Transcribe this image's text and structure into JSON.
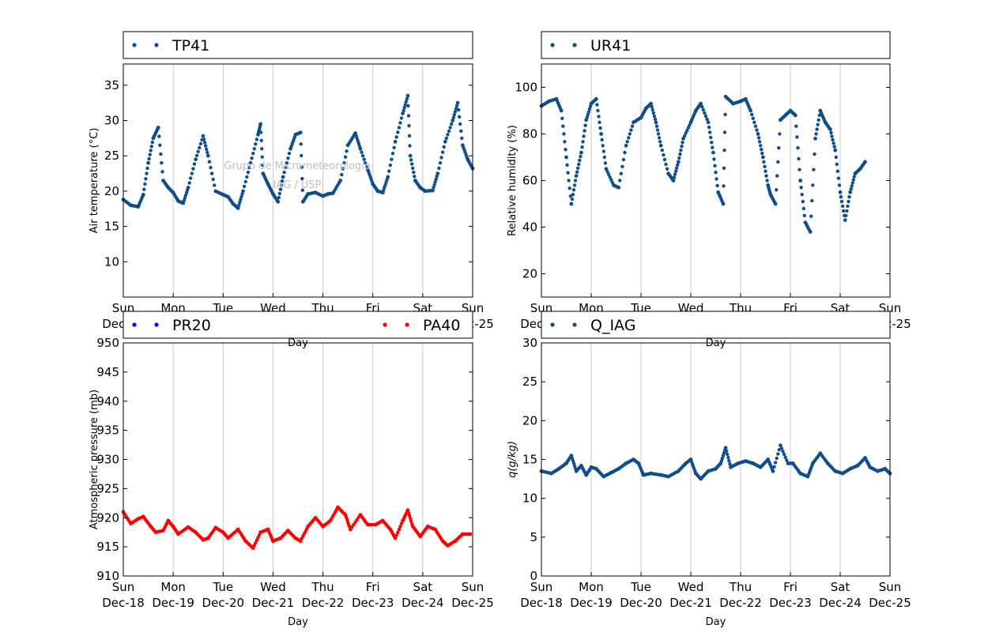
{
  "watermark": [
    "Grupo de Micrometeorologia",
    "IAG / USP"
  ],
  "x_tick_labels": [
    [
      "Sun",
      "Dec-18"
    ],
    [
      "Mon",
      "Dec-19"
    ],
    [
      "Tue",
      "Dec-20"
    ],
    [
      "Wed",
      "Dec-21"
    ],
    [
      "Thu",
      "Dec-22"
    ],
    [
      "Fri",
      "Dec-23"
    ],
    [
      "Sat",
      "Dec-24"
    ],
    [
      "Sun",
      "Dec-25"
    ]
  ],
  "chart_data": [
    {
      "id": "temperature",
      "type": "scatter",
      "xlabel": "Day",
      "ylabel": "Air temperature (°C)",
      "ylim": [
        5,
        38
      ],
      "yticks": [
        10,
        15,
        20,
        25,
        30,
        35
      ],
      "grid": "vertical",
      "legend_position": "top",
      "x_unit": "day offset from Sun Dec-18",
      "series": [
        {
          "name": "TP41",
          "color": "#104e8b",
          "points": [
            [
              0,
              18.8
            ],
            [
              0.15,
              18.0
            ],
            [
              0.3,
              17.8
            ],
            [
              0.4,
              19.5
            ],
            [
              0.5,
              24.0
            ],
            [
              0.6,
              27.5
            ],
            [
              0.7,
              29.0
            ],
            [
              0.8,
              21.5
            ],
            [
              0.9,
              20.5
            ],
            [
              1.0,
              19.8
            ],
            [
              1.1,
              18.6
            ],
            [
              1.2,
              18.3
            ],
            [
              1.3,
              20.5
            ],
            [
              1.45,
              24.5
            ],
            [
              1.6,
              27.8
            ],
            [
              1.7,
              25.0
            ],
            [
              1.85,
              20.0
            ],
            [
              2.0,
              19.5
            ],
            [
              2.1,
              19.2
            ],
            [
              2.2,
              18.2
            ],
            [
              2.3,
              17.6
            ],
            [
              2.4,
              20.0
            ],
            [
              2.55,
              24.0
            ],
            [
              2.7,
              28.0
            ],
            [
              2.75,
              29.5
            ],
            [
              2.8,
              22.5
            ],
            [
              2.9,
              21.0
            ],
            [
              3.0,
              19.6
            ],
            [
              3.1,
              18.5
            ],
            [
              3.2,
              22.0
            ],
            [
              3.35,
              26.0
            ],
            [
              3.45,
              28.0
            ],
            [
              3.55,
              28.3
            ],
            [
              3.6,
              18.5
            ],
            [
              3.7,
              19.6
            ],
            [
              3.85,
              19.8
            ],
            [
              4.0,
              19.3
            ],
            [
              4.1,
              19.6
            ],
            [
              4.2,
              19.7
            ],
            [
              4.35,
              21.5
            ],
            [
              4.5,
              26.5
            ],
            [
              4.65,
              28.2
            ],
            [
              4.75,
              26.0
            ],
            [
              4.9,
              23.0
            ],
            [
              5.0,
              21.0
            ],
            [
              5.1,
              20.0
            ],
            [
              5.2,
              19.8
            ],
            [
              5.3,
              22.0
            ],
            [
              5.45,
              27.0
            ],
            [
              5.6,
              31.0
            ],
            [
              5.7,
              33.5
            ],
            [
              5.75,
              25.0
            ],
            [
              5.85,
              21.5
            ],
            [
              5.95,
              20.5
            ],
            [
              6.05,
              20.0
            ],
            [
              6.2,
              20.1
            ],
            [
              6.3,
              22.5
            ],
            [
              6.45,
              27.0
            ],
            [
              6.6,
              30.0
            ],
            [
              6.7,
              32.5
            ],
            [
              6.8,
              26.5
            ],
            [
              6.9,
              24.5
            ],
            [
              7.0,
              23.2
            ]
          ]
        }
      ]
    },
    {
      "id": "humidity",
      "type": "scatter",
      "xlabel": "Day",
      "ylabel": "Relative humidity (%)",
      "ylim": [
        10,
        110
      ],
      "yticks": [
        20,
        40,
        60,
        80,
        100
      ],
      "grid": "vertical",
      "legend_position": "top",
      "x_unit": "day offset from Sun Dec-18",
      "series": [
        {
          "name": "UR41",
          "color": "#104e8b",
          "points": [
            [
              0,
              92
            ],
            [
              0.15,
              94
            ],
            [
              0.3,
              95
            ],
            [
              0.4,
              90
            ],
            [
              0.5,
              70
            ],
            [
              0.6,
              50
            ],
            [
              0.7,
              62
            ],
            [
              0.8,
              72
            ],
            [
              0.9,
              86
            ],
            [
              1.0,
              93
            ],
            [
              1.1,
              95
            ],
            [
              1.2,
              80
            ],
            [
              1.3,
              65
            ],
            [
              1.45,
              58
            ],
            [
              1.55,
              57
            ],
            [
              1.7,
              75
            ],
            [
              1.85,
              85
            ],
            [
              2.0,
              87
            ],
            [
              2.1,
              91
            ],
            [
              2.2,
              93
            ],
            [
              2.3,
              85
            ],
            [
              2.4,
              75
            ],
            [
              2.55,
              63
            ],
            [
              2.65,
              60
            ],
            [
              2.75,
              68
            ],
            [
              2.85,
              78
            ],
            [
              3.0,
              85
            ],
            [
              3.1,
              90
            ],
            [
              3.2,
              93
            ],
            [
              3.35,
              85
            ],
            [
              3.45,
              72
            ],
            [
              3.55,
              55
            ],
            [
              3.65,
              50
            ],
            [
              3.7,
              96
            ],
            [
              3.85,
              93
            ],
            [
              4.0,
              94
            ],
            [
              4.1,
              95
            ],
            [
              4.2,
              90
            ],
            [
              4.35,
              80
            ],
            [
              4.45,
              70
            ],
            [
              4.55,
              58
            ],
            [
              4.6,
              54
            ],
            [
              4.7,
              50
            ],
            [
              4.8,
              86
            ],
            [
              4.9,
              88
            ],
            [
              5.0,
              90
            ],
            [
              5.1,
              88
            ],
            [
              5.2,
              60
            ],
            [
              5.3,
              42
            ],
            [
              5.4,
              38
            ],
            [
              5.5,
              78
            ],
            [
              5.6,
              90
            ],
            [
              5.7,
              85
            ],
            [
              5.8,
              82
            ],
            [
              5.9,
              73
            ],
            [
              6.0,
              55
            ],
            [
              6.1,
              43
            ],
            [
              6.2,
              55
            ],
            [
              6.3,
              63
            ],
            [
              6.4,
              65
            ],
            [
              6.5,
              68
            ]
          ]
        }
      ]
    },
    {
      "id": "pressure",
      "type": "scatter",
      "xlabel": "Day",
      "ylabel": "Atmospheric pressure (mb)",
      "ylim": [
        910,
        950
      ],
      "yticks": [
        910,
        915,
        920,
        925,
        930,
        935,
        940,
        945,
        950
      ],
      "grid": "vertical",
      "legend_position": "top",
      "x_unit": "day offset from Sun Dec-18",
      "series": [
        {
          "name": "PR20",
          "color": "#0000ff",
          "points": []
        },
        {
          "name": "PA40",
          "color": "#ff0000",
          "points": [
            [
              0,
              921
            ],
            [
              0.15,
              919
            ],
            [
              0.3,
              919.8
            ],
            [
              0.4,
              920.2
            ],
            [
              0.55,
              918.5
            ],
            [
              0.65,
              917.5
            ],
            [
              0.8,
              917.8
            ],
            [
              0.9,
              919.5
            ],
            [
              1.0,
              918.5
            ],
            [
              1.1,
              917.2
            ],
            [
              1.3,
              918.4
            ],
            [
              1.45,
              917.5
            ],
            [
              1.6,
              916.2
            ],
            [
              1.7,
              916.5
            ],
            [
              1.85,
              918.3
            ],
            [
              2.0,
              917.5
            ],
            [
              2.1,
              916.5
            ],
            [
              2.3,
              918.0
            ],
            [
              2.45,
              916.0
            ],
            [
              2.6,
              914.8
            ],
            [
              2.75,
              917.5
            ],
            [
              2.9,
              918.0
            ],
            [
              3.0,
              916.0
            ],
            [
              3.15,
              916.5
            ],
            [
              3.3,
              917.8
            ],
            [
              3.45,
              916.5
            ],
            [
              3.55,
              916.0
            ],
            [
              3.7,
              918.5
            ],
            [
              3.85,
              920.0
            ],
            [
              4.0,
              918.5
            ],
            [
              4.15,
              919.5
            ],
            [
              4.3,
              921.8
            ],
            [
              4.45,
              920.5
            ],
            [
              4.55,
              918.0
            ],
            [
              4.75,
              920.5
            ],
            [
              4.9,
              918.8
            ],
            [
              5.05,
              918.8
            ],
            [
              5.2,
              919.5
            ],
            [
              5.35,
              918.0
            ],
            [
              5.45,
              916.5
            ],
            [
              5.6,
              919.5
            ],
            [
              5.7,
              921.3
            ],
            [
              5.8,
              918.5
            ],
            [
              5.95,
              916.8
            ],
            [
              6.1,
              918.5
            ],
            [
              6.25,
              918.0
            ],
            [
              6.4,
              916.0
            ],
            [
              6.5,
              915.2
            ],
            [
              6.65,
              916.0
            ],
            [
              6.8,
              917.2
            ],
            [
              6.95,
              917.2
            ]
          ]
        }
      ]
    },
    {
      "id": "specific_humidity",
      "type": "scatter",
      "xlabel": "Day",
      "ylabel": "q(g/kg)",
      "ylim": [
        0,
        30
      ],
      "yticks": [
        0,
        5,
        10,
        15,
        20,
        25,
        30
      ],
      "grid": "vertical",
      "legend_position": "top",
      "x_unit": "day offset from Sun Dec-18",
      "series": [
        {
          "name": "Q_IAG",
          "color": "#104e8b",
          "points": [
            [
              0,
              13.5
            ],
            [
              0.2,
              13.2
            ],
            [
              0.35,
              13.8
            ],
            [
              0.5,
              14.5
            ],
            [
              0.6,
              15.5
            ],
            [
              0.7,
              13.5
            ],
            [
              0.8,
              14.2
            ],
            [
              0.9,
              13.0
            ],
            [
              1.0,
              14.0
            ],
            [
              1.1,
              13.8
            ],
            [
              1.25,
              12.8
            ],
            [
              1.4,
              13.3
            ],
            [
              1.55,
              13.8
            ],
            [
              1.7,
              14.5
            ],
            [
              1.85,
              15.0
            ],
            [
              1.95,
              14.5
            ],
            [
              2.05,
              13.0
            ],
            [
              2.2,
              13.2
            ],
            [
              2.4,
              13.0
            ],
            [
              2.55,
              12.8
            ],
            [
              2.75,
              13.5
            ],
            [
              2.9,
              14.5
            ],
            [
              3.0,
              15.0
            ],
            [
              3.1,
              13.2
            ],
            [
              3.2,
              12.5
            ],
            [
              3.35,
              13.5
            ],
            [
              3.5,
              13.8
            ],
            [
              3.6,
              14.5
            ],
            [
              3.7,
              16.5
            ],
            [
              3.8,
              14.0
            ],
            [
              3.95,
              14.5
            ],
            [
              4.1,
              14.8
            ],
            [
              4.25,
              14.5
            ],
            [
              4.4,
              14.0
            ],
            [
              4.55,
              15.0
            ],
            [
              4.65,
              13.5
            ],
            [
              4.8,
              16.8
            ],
            [
              4.95,
              14.5
            ],
            [
              5.05,
              14.5
            ],
            [
              5.2,
              13.2
            ],
            [
              5.35,
              12.8
            ],
            [
              5.45,
              14.5
            ],
            [
              5.6,
              15.8
            ],
            [
              5.75,
              14.5
            ],
            [
              5.9,
              13.5
            ],
            [
              6.05,
              13.2
            ],
            [
              6.2,
              13.8
            ],
            [
              6.35,
              14.2
            ],
            [
              6.5,
              15.2
            ],
            [
              6.6,
              14.0
            ],
            [
              6.75,
              13.5
            ],
            [
              6.9,
              13.8
            ],
            [
              7.0,
              13.2
            ]
          ]
        }
      ]
    }
  ]
}
